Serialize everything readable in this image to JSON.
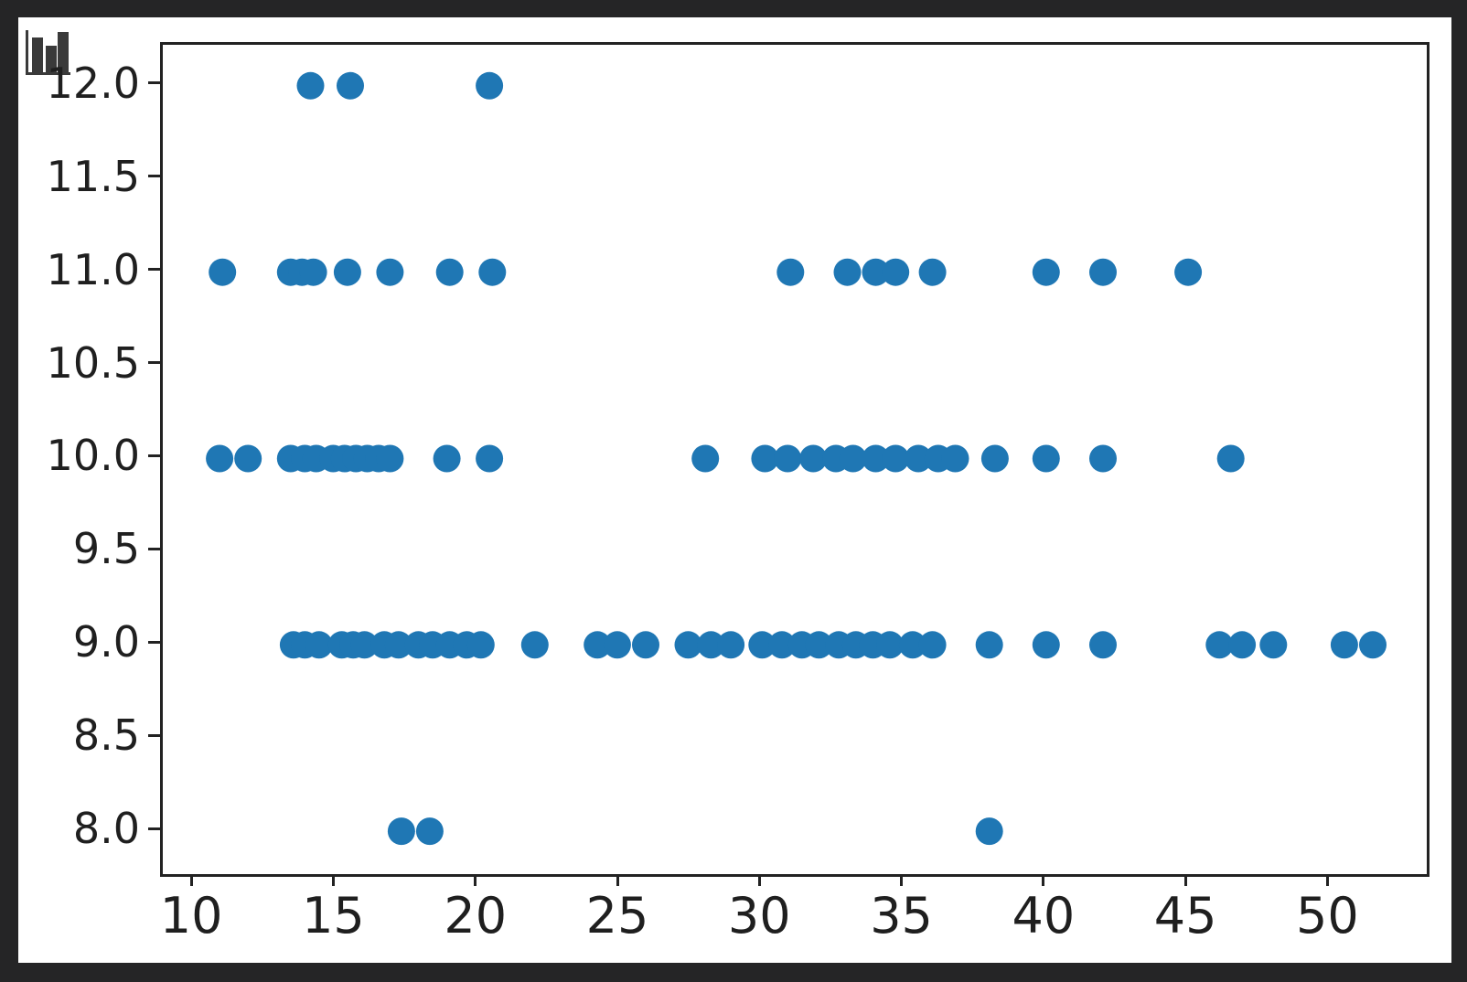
{
  "colors": {
    "page_background": "#252526",
    "figure_background": "#ffffff",
    "spine_color": "#222222",
    "tick_label_color": "#1f1f1f",
    "marker_color": "#1f77b4",
    "icon_color": "#3a3a3a"
  },
  "icon": {
    "type": "bar-chart-icon"
  },
  "chart_data": {
    "type": "scatter",
    "title": "",
    "xlabel": "",
    "ylabel": "",
    "legend": null,
    "grid": false,
    "xlim": [
      8.9,
      53.4
    ],
    "ylim": [
      7.77,
      12.22
    ],
    "x_ticks": [
      10,
      15,
      20,
      25,
      30,
      35,
      40,
      45,
      50
    ],
    "x_tick_labels": [
      "10",
      "15",
      "20",
      "25",
      "30",
      "35",
      "40",
      "45",
      "50"
    ],
    "y_ticks": [
      8.0,
      8.5,
      9.0,
      9.5,
      10.0,
      10.5,
      11.0,
      11.5,
      12.0
    ],
    "y_tick_labels": [
      "8.0",
      "8.5",
      "9.0",
      "9.5",
      "10.0",
      "10.5",
      "11.0",
      "11.5",
      "12.0"
    ],
    "marker_diameter_px": 30,
    "series": [
      {
        "y": 12,
        "x_values": [
          14.1,
          15.5,
          20.4
        ]
      },
      {
        "y": 11,
        "x_values": [
          11.0,
          13.4,
          13.8,
          14.2,
          15.4,
          16.9,
          19.0,
          20.5,
          31.0,
          33.0,
          34.0,
          34.7,
          36.0,
          40.0,
          42.0,
          45.0
        ]
      },
      {
        "y": 10,
        "x_values": [
          10.9,
          11.9,
          13.4,
          13.9,
          14.3,
          14.9,
          15.3,
          15.7,
          16.1,
          16.5,
          16.9,
          18.9,
          20.4,
          28.0,
          30.1,
          30.9,
          31.8,
          32.6,
          33.2,
          34.0,
          34.7,
          35.5,
          36.2,
          36.8,
          38.2,
          40.0,
          42.0,
          46.5
        ]
      },
      {
        "y": 9,
        "x_values": [
          13.5,
          13.9,
          14.4,
          15.2,
          15.6,
          16.0,
          16.7,
          17.2,
          17.9,
          18.4,
          19.0,
          19.6,
          20.1,
          22.0,
          24.2,
          24.9,
          25.9,
          27.4,
          28.2,
          28.9,
          30.0,
          30.7,
          31.4,
          32.0,
          32.7,
          33.3,
          33.9,
          34.5,
          35.3,
          36.0,
          38.0,
          40.0,
          42.0,
          46.1,
          46.9,
          48.0,
          50.5,
          51.5
        ]
      },
      {
        "y": 8,
        "x_values": [
          17.3,
          18.3,
          38.0
        ]
      }
    ]
  }
}
